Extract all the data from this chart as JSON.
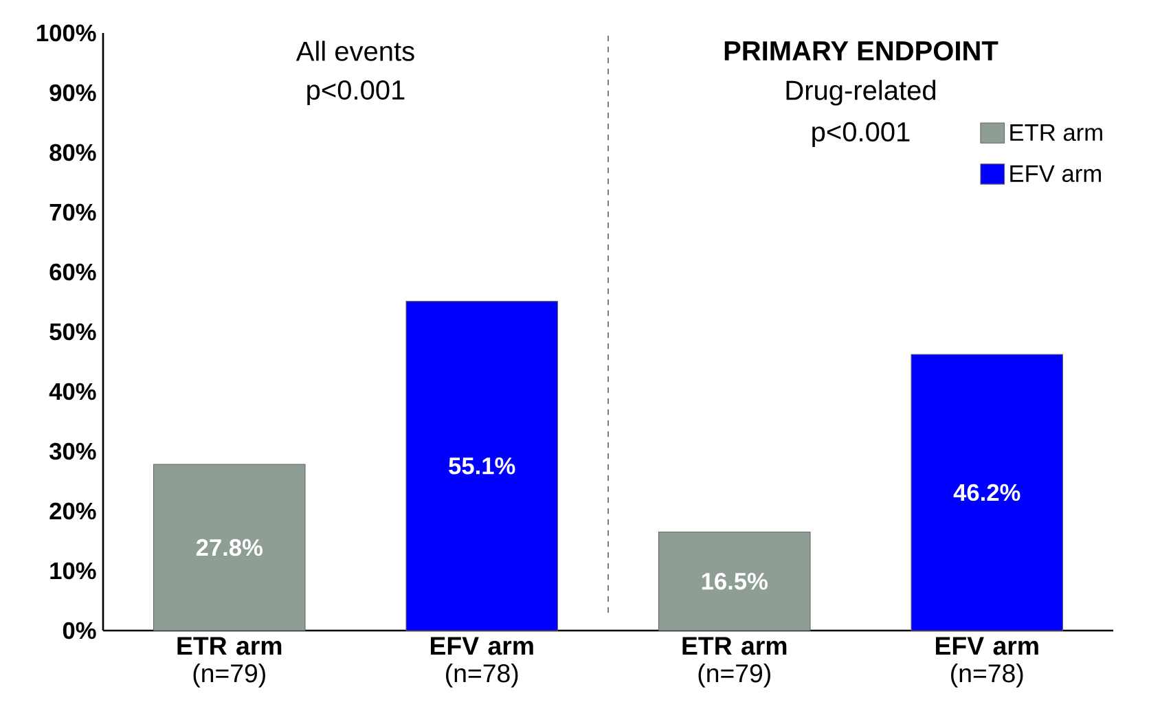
{
  "chart_data": {
    "type": "bar",
    "categories": [
      "**ETR arm** (n=79)",
      "**EFV arm** (n=78)",
      "**ETR arm** (n=79)",
      "**EFV arm** (n=78)"
    ],
    "series": [
      {
        "name": "ETR arm",
        "color": "#8f9e94",
        "values": [
          27.8,
          null,
          16.5,
          null
        ],
        "value_labels": [
          "27.8%",
          null,
          "16.5%",
          null
        ]
      },
      {
        "name": "EFV arm",
        "color": "#0000ff",
        "values": [
          null,
          55.1,
          null,
          46.2
        ],
        "value_labels": [
          null,
          "55.1%",
          null,
          "46.2%"
        ]
      }
    ],
    "ylim": [
      0,
      100
    ],
    "yticks": [
      {
        "value": 0,
        "label": "0%"
      },
      {
        "value": 10,
        "label": "10%"
      },
      {
        "value": 20,
        "label": "20%"
      },
      {
        "value": 30,
        "label": "30%"
      },
      {
        "value": 40,
        "label": "40%"
      },
      {
        "value": 50,
        "label": "50%"
      },
      {
        "value": 60,
        "label": "60%"
      },
      {
        "value": 70,
        "label": "70%"
      },
      {
        "value": 80,
        "label": "80%"
      },
      {
        "value": 90,
        "label": "90%"
      },
      {
        "value": 100,
        "label": "100%"
      }
    ],
    "annotations": [
      "All events",
      "p<0.001",
      "**PRIMARY ENDPOINT**",
      "Drug-related",
      "p<0.001"
    ],
    "legend": "top right",
    "grid": false
  }
}
